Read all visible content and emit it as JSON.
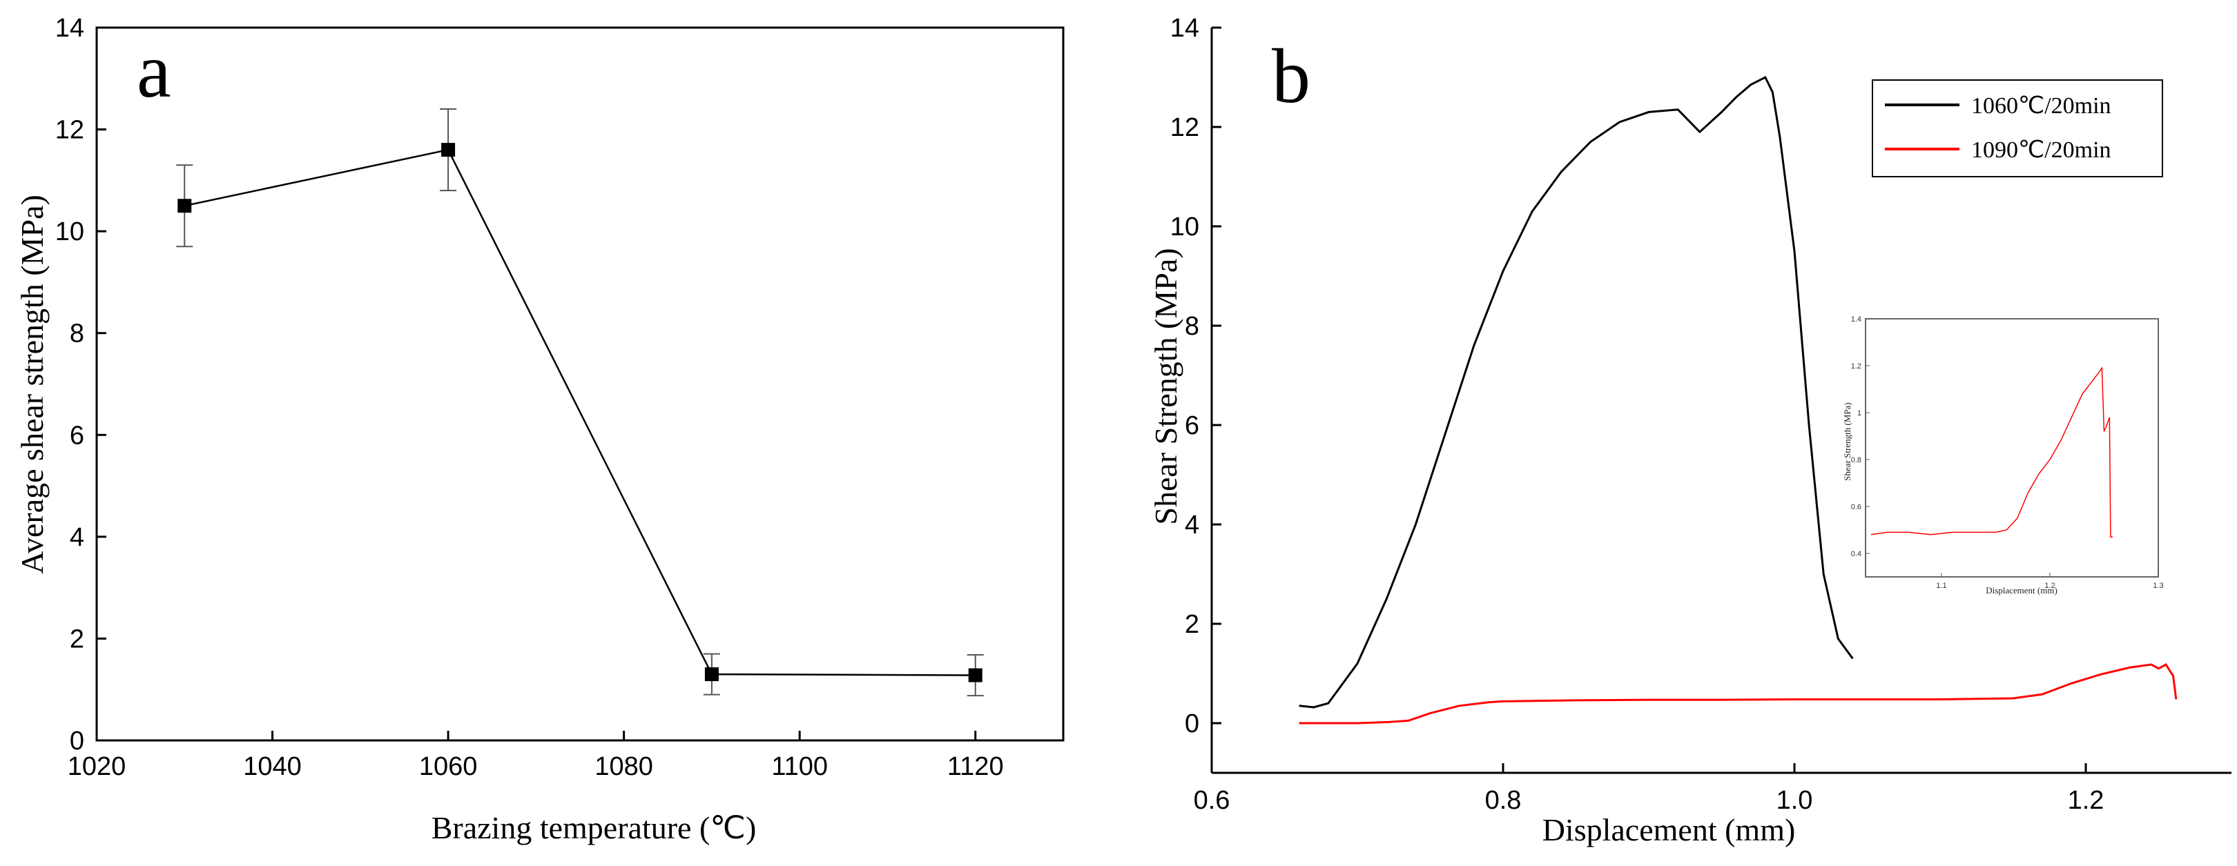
{
  "chart_data": [
    {
      "panel": "a",
      "type": "line",
      "panel_label": "a",
      "title": "",
      "xlabel": "Brazing temperature (℃)",
      "ylabel": "Average shear strength (MPa)",
      "xlim": [
        1020,
        1130
      ],
      "ylim": [
        0,
        14
      ],
      "xticks": [
        1020,
        1040,
        1060,
        1080,
        1100,
        1120
      ],
      "yticks": [
        0,
        2,
        4,
        6,
        8,
        10,
        12,
        14
      ],
      "series": [
        {
          "name": "Average shear strength",
          "color": "#000000",
          "marker": "square",
          "x": [
            1030,
            1060,
            1090,
            1120
          ],
          "values": [
            10.5,
            11.6,
            1.3,
            1.28
          ],
          "error": [
            0.8,
            0.8,
            0.4,
            0.4
          ]
        }
      ]
    },
    {
      "panel": "b",
      "type": "line",
      "panel_label": "b",
      "title": "",
      "xlabel": "Displacement (mm)",
      "ylabel": "Shear Strength (MPa)",
      "xlim": [
        0.6,
        1.3
      ],
      "ylim": [
        -1,
        14
      ],
      "xticks": [
        0.6,
        0.8,
        1.0,
        1.2
      ],
      "xtick_labels": [
        "0.6",
        "0.8",
        "1.0",
        "1.2"
      ],
      "yticks": [
        0,
        2,
        4,
        6,
        8,
        10,
        12,
        14
      ],
      "legend": [
        "1060℃/20min",
        "1090℃/20min"
      ],
      "series": [
        {
          "name": "1060℃/20min",
          "color": "#000000",
          "x": [
            0.66,
            0.67,
            0.68,
            0.7,
            0.72,
            0.74,
            0.76,
            0.78,
            0.8,
            0.82,
            0.84,
            0.86,
            0.88,
            0.9,
            0.92,
            0.935,
            0.95,
            0.96,
            0.97,
            0.98,
            0.985,
            0.99,
            1.0,
            1.01,
            1.02,
            1.03,
            1.04
          ],
          "values": [
            0.35,
            0.32,
            0.4,
            1.2,
            2.5,
            4.0,
            5.8,
            7.6,
            9.1,
            10.3,
            11.1,
            11.7,
            12.1,
            12.3,
            12.35,
            11.9,
            12.3,
            12.6,
            12.85,
            13.0,
            12.7,
            11.8,
            9.5,
            6.0,
            3.0,
            1.7,
            1.3
          ]
        },
        {
          "name": "1090℃/20min",
          "color": "#ff0000",
          "x": [
            0.66,
            0.68,
            0.7,
            0.72,
            0.735,
            0.75,
            0.77,
            0.79,
            0.8,
            0.85,
            0.9,
            0.95,
            1.0,
            1.05,
            1.1,
            1.15,
            1.17,
            1.19,
            1.21,
            1.23,
            1.245,
            1.25,
            1.255,
            1.26,
            1.262
          ],
          "values": [
            0.0,
            0.0,
            0.0,
            0.02,
            0.05,
            0.2,
            0.35,
            0.42,
            0.44,
            0.46,
            0.47,
            0.47,
            0.48,
            0.48,
            0.48,
            0.5,
            0.58,
            0.8,
            0.98,
            1.12,
            1.18,
            1.1,
            1.18,
            0.95,
            0.48
          ]
        }
      ],
      "inset": {
        "type": "line",
        "xlabel": "Displacement (mm)",
        "ylabel": "Shear Strength (MPa)",
        "xlim": [
          1.03,
          1.3
        ],
        "ylim": [
          0.3,
          1.4
        ],
        "xticks": [
          1.1,
          1.2,
          1.3
        ],
        "yticks": [
          0.4,
          0.6,
          0.8,
          1.0,
          1.2,
          1.4
        ],
        "series": [
          {
            "name": "1090℃/20min",
            "color": "#ff0000",
            "x": [
              1.035,
              1.05,
              1.07,
              1.09,
              1.11,
              1.13,
              1.15,
              1.16,
              1.17,
              1.18,
              1.19,
              1.2,
              1.21,
              1.22,
              1.23,
              1.24,
              1.245,
              1.248,
              1.25,
              1.252,
              1.255,
              1.256,
              1.258
            ],
            "values": [
              0.48,
              0.49,
              0.49,
              0.48,
              0.49,
              0.49,
              0.49,
              0.5,
              0.55,
              0.66,
              0.74,
              0.8,
              0.88,
              0.98,
              1.08,
              1.14,
              1.17,
              1.19,
              0.92,
              0.94,
              0.98,
              0.47,
              0.47
            ]
          }
        ]
      }
    }
  ]
}
